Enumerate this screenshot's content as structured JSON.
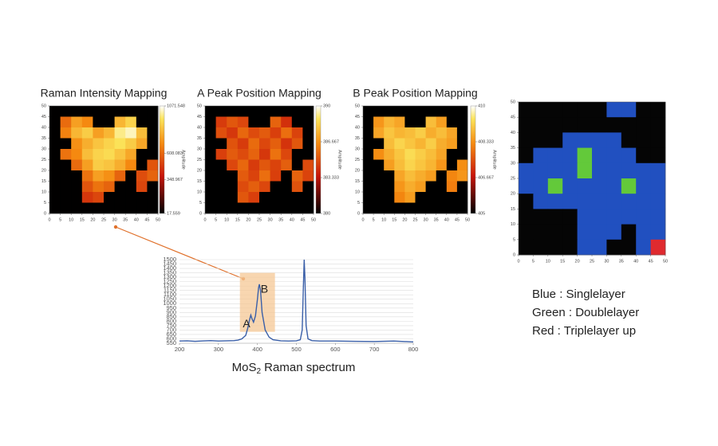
{
  "chart_data": [
    {
      "type": "heatmap",
      "title": "Raman Intensity Mapping",
      "colorbar_label": "Amplitude",
      "xlim": [
        0,
        50
      ],
      "ylim": [
        0,
        50
      ],
      "xticks": [
        0,
        5,
        10,
        15,
        20,
        25,
        30,
        35,
        40,
        45,
        50
      ],
      "yticks": [
        0,
        5,
        10,
        15,
        20,
        25,
        30,
        35,
        40,
        45,
        50
      ],
      "clim": [
        17.559,
        1071.548
      ],
      "colorbar_ticks": [
        {
          "value": 1071.548,
          "label": "1071.548"
        },
        {
          "value": 608.083,
          "label": "608.083"
        },
        {
          "value": 348.967,
          "label": "348.967"
        },
        {
          "value": 17.559,
          "label": "17.559"
        }
      ],
      "values": [
        [
          20,
          20,
          20,
          20,
          20,
          20,
          20,
          20,
          20,
          20
        ],
        [
          20,
          620,
          760,
          700,
          20,
          20,
          820,
          900,
          20,
          20
        ],
        [
          20,
          680,
          820,
          880,
          760,
          820,
          980,
          1020,
          840,
          20
        ],
        [
          20,
          20,
          720,
          800,
          860,
          900,
          940,
          880,
          780,
          20
        ],
        [
          20,
          640,
          700,
          840,
          900,
          920,
          860,
          780,
          20,
          20
        ],
        [
          20,
          20,
          620,
          760,
          880,
          860,
          800,
          700,
          20,
          560
        ],
        [
          20,
          20,
          20,
          640,
          760,
          720,
          600,
          20,
          540,
          600
        ],
        [
          20,
          20,
          20,
          560,
          640,
          600,
          20,
          20,
          520,
          20
        ],
        [
          20,
          20,
          20,
          480,
          520,
          20,
          20,
          20,
          20,
          20
        ],
        [
          20,
          20,
          20,
          20,
          20,
          20,
          20,
          20,
          20,
          20
        ]
      ]
    },
    {
      "type": "heatmap",
      "title": "A Peak Position Mapping",
      "colorbar_label": "Amplitude",
      "xlim": [
        0,
        50
      ],
      "ylim": [
        0,
        50
      ],
      "xticks": [
        0,
        5,
        10,
        15,
        20,
        25,
        30,
        35,
        40,
        45,
        50
      ],
      "yticks": [
        0,
        5,
        10,
        15,
        20,
        25,
        30,
        35,
        40,
        45,
        50
      ],
      "clim": [
        380,
        390
      ],
      "colorbar_ticks": [
        390,
        {
          "value": 386.667,
          "label": "386.667"
        },
        {
          "value": 383.333,
          "label": "383.333"
        },
        380
      ],
      "values": [
        [
          380,
          380,
          380,
          380,
          380,
          380,
          380,
          380,
          380,
          380
        ],
        [
          380,
          384.5,
          385.2,
          384.8,
          380,
          380,
          385.5,
          384.2,
          380,
          380
        ],
        [
          380,
          385,
          384.4,
          385.6,
          384.9,
          385.3,
          384.6,
          385.8,
          384.7,
          380
        ],
        [
          380,
          380,
          385.1,
          384.5,
          385.7,
          384.8,
          385.4,
          384.3,
          385.2,
          380
        ],
        [
          380,
          384.6,
          385.3,
          384.9,
          385.5,
          384.4,
          385.9,
          384.8,
          380,
          380
        ],
        [
          380,
          380,
          384.8,
          385.6,
          384.5,
          385.2,
          384.7,
          385.4,
          380,
          384.9
        ],
        [
          380,
          380,
          380,
          385.3,
          384.7,
          385.8,
          384.6,
          380,
          385.5,
          384.7
        ],
        [
          380,
          380,
          380,
          384.9,
          385.4,
          384.8,
          380,
          380,
          385.1,
          380
        ],
        [
          380,
          380,
          380,
          385.2,
          384.6,
          380,
          380,
          380,
          380,
          380
        ],
        [
          380,
          380,
          380,
          380,
          380,
          380,
          380,
          380,
          380,
          380
        ]
      ]
    },
    {
      "type": "heatmap",
      "title": "B Peak Position Mapping",
      "colorbar_label": "Amplitude",
      "xlim": [
        0,
        50
      ],
      "ylim": [
        0,
        50
      ],
      "xticks": [
        0,
        5,
        10,
        15,
        20,
        25,
        30,
        35,
        40,
        45,
        50
      ],
      "yticks": [
        0,
        5,
        10,
        15,
        20,
        25,
        30,
        35,
        40,
        45,
        50
      ],
      "clim": [
        405,
        410
      ],
      "colorbar_ticks": [
        410,
        {
          "value": 408.333,
          "label": "408.333"
        },
        {
          "value": 406.667,
          "label": "406.667"
        },
        405
      ],
      "values": [
        [
          405,
          405,
          405,
          405,
          405,
          405,
          405,
          405,
          405,
          405
        ],
        [
          405,
          408.4,
          408.8,
          408.6,
          405,
          405,
          408.9,
          408.5,
          405,
          405
        ],
        [
          405,
          408.6,
          409,
          408.8,
          408.9,
          409.1,
          408.7,
          408.9,
          408.6,
          405
        ],
        [
          405,
          405,
          408.9,
          409.2,
          409,
          408.8,
          409.1,
          408.7,
          408.5,
          405
        ],
        [
          405,
          408.3,
          408.7,
          409,
          409.3,
          409.1,
          408.9,
          408.6,
          405,
          405
        ],
        [
          405,
          405,
          408.5,
          408.9,
          409.2,
          409,
          408.8,
          408.4,
          405,
          408.3
        ],
        [
          405,
          405,
          405,
          408.6,
          408.9,
          408.7,
          408.5,
          405,
          408.2,
          408.4
        ],
        [
          405,
          405,
          405,
          408.4,
          408.7,
          408.5,
          405,
          405,
          408.1,
          405
        ],
        [
          405,
          405,
          405,
          408.2,
          408.5,
          405,
          405,
          405,
          405,
          405
        ],
        [
          405,
          405,
          405,
          405,
          405,
          405,
          405,
          405,
          405,
          405
        ]
      ]
    },
    {
      "type": "classmap",
      "xlim": [
        0,
        50
      ],
      "ylim": [
        0,
        50
      ],
      "xticks": [
        0,
        5,
        10,
        15,
        20,
        25,
        30,
        35,
        40,
        45,
        50
      ],
      "yticks": [
        0,
        5,
        10,
        15,
        20,
        25,
        30,
        35,
        40,
        45,
        50
      ],
      "class_colors": [
        "#050505",
        "#2150c0",
        "#63c93a",
        "#e02a2f"
      ],
      "legend": [
        "Blue : Singlelayer",
        "Green : Doublelayer",
        "Red : Triplelayer up"
      ],
      "values": [
        [
          0,
          0,
          0,
          0,
          0,
          0,
          1,
          1,
          0,
          0
        ],
        [
          0,
          0,
          0,
          0,
          0,
          0,
          0,
          0,
          0,
          0
        ],
        [
          0,
          0,
          0,
          1,
          1,
          1,
          1,
          0,
          0,
          0
        ],
        [
          0,
          1,
          1,
          1,
          2,
          1,
          1,
          1,
          0,
          0
        ],
        [
          1,
          1,
          1,
          1,
          2,
          1,
          1,
          1,
          1,
          1
        ],
        [
          1,
          1,
          2,
          1,
          1,
          1,
          1,
          2,
          1,
          1
        ],
        [
          0,
          1,
          1,
          1,
          1,
          1,
          1,
          1,
          1,
          1
        ],
        [
          0,
          0,
          0,
          0,
          1,
          1,
          1,
          1,
          1,
          1
        ],
        [
          0,
          0,
          0,
          0,
          1,
          1,
          1,
          0,
          1,
          1
        ],
        [
          0,
          0,
          0,
          0,
          1,
          1,
          0,
          0,
          1,
          3
        ]
      ]
    },
    {
      "type": "line",
      "caption": {
        "main": "MoS",
        "sub": "2",
        "rest": " Raman spectrum"
      },
      "color": "#3a5fa8",
      "grid": true,
      "xlim": [
        200,
        800
      ],
      "ylim": [
        550,
        1500
      ],
      "xticks": [
        200,
        300,
        400,
        500,
        600,
        700,
        800
      ],
      "yticks": [
        550,
        600,
        650,
        700,
        750,
        800,
        850,
        900,
        950,
        1000,
        1050,
        1100,
        1150,
        1200,
        1250,
        1300,
        1350,
        1400,
        1450,
        1500
      ],
      "highlight": {
        "color": "#f6c896",
        "x": [
          355,
          445
        ],
        "y": [
          680,
          1350
        ]
      },
      "annotations": [
        {
          "text": "A",
          "x": 372,
          "y": 765
        },
        {
          "text": "B",
          "x": 418,
          "y": 1160
        }
      ],
      "x": [
        200,
        220,
        240,
        260,
        280,
        300,
        320,
        340,
        350,
        360,
        370,
        375,
        380,
        383,
        386,
        390,
        395,
        400,
        403,
        405,
        408,
        412,
        420,
        430,
        440,
        460,
        480,
        500,
        510,
        515,
        518,
        520,
        522,
        525,
        530,
        540,
        560,
        600,
        650,
        700,
        750,
        800
      ],
      "values": [
        575,
        578,
        572,
        576,
        580,
        575,
        578,
        580,
        585,
        600,
        640,
        720,
        820,
        870,
        830,
        790,
        860,
        1050,
        1180,
        1220,
        1150,
        900,
        700,
        620,
        590,
        578,
        575,
        578,
        590,
        700,
        1200,
        1500,
        1300,
        750,
        600,
        580,
        575,
        575,
        572,
        570,
        575,
        565
      ]
    }
  ]
}
